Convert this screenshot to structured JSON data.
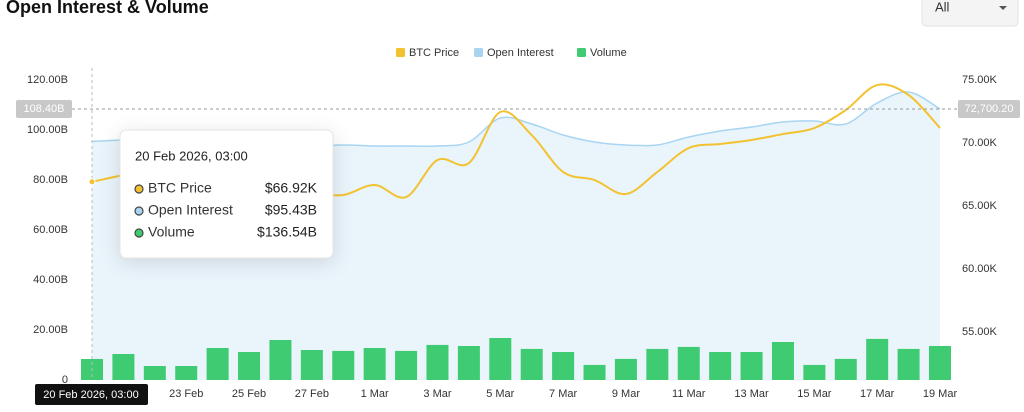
{
  "chart_data": {
    "type": "combo",
    "title": "Open Interest & Volume",
    "range_selector": "All",
    "categories": [
      "20 Feb 2026, 03:00",
      null,
      null,
      "23 Feb",
      null,
      "25 Feb",
      null,
      "27 Feb",
      null,
      "1 Mar",
      null,
      "3 Mar",
      null,
      "5 Mar",
      null,
      "7 Mar",
      null,
      "9 Mar",
      null,
      "11 Mar",
      null,
      "13 Mar",
      null,
      "15 Mar",
      null,
      "17 Mar",
      null,
      "19 Mar"
    ],
    "series": [
      {
        "name": "BTC Price",
        "type": "line",
        "axis": "y2",
        "color": "#f2c230",
        "values": [
          66920,
          67460,
          68000,
          67700,
          66700,
          66300,
          65900,
          66000,
          65870,
          66670,
          65710,
          68650,
          68410,
          72460,
          70630,
          67700,
          67060,
          65950,
          67700,
          69600,
          69920,
          70240,
          70710,
          71190,
          72620,
          74600,
          73810,
          71190
        ]
      },
      {
        "name": "Open Interest",
        "type": "area",
        "axis": "y",
        "color": "#a8d5f2",
        "fill": "#eaf4fb",
        "values": [
          95.43,
          96,
          96,
          95.6,
          94.8,
          94,
          93.6,
          93.6,
          94,
          93.6,
          93.6,
          93.6,
          95.2,
          104.8,
          102.4,
          98,
          95.2,
          94,
          94,
          97.2,
          99.6,
          101.2,
          103.2,
          103.6,
          102.4,
          110.8,
          115.2,
          108.4
        ]
      },
      {
        "name": "Volume",
        "type": "bar",
        "axis": "y3",
        "color": "#3ecb72",
        "values": [
          136.54,
          169,
          91,
          91,
          208,
          182,
          260,
          195,
          189,
          208,
          189,
          228,
          221,
          273,
          202,
          182,
          98,
          137,
          202,
          215,
          182,
          182,
          247,
          98,
          137,
          267,
          202,
          221
        ]
      }
    ],
    "ylim": [
      0,
      120
    ],
    "yticks": [
      {
        "value": 0,
        "label": "0"
      },
      {
        "value": 20,
        "label": "20.00B"
      },
      {
        "value": 40,
        "label": "40.00B"
      },
      {
        "value": 60,
        "label": "60.00B"
      },
      {
        "value": 80,
        "label": "80.00B"
      },
      {
        "value": 100,
        "label": "100.00B"
      },
      {
        "value": 120,
        "label": "120.00B"
      }
    ],
    "y2lim": [
      51190,
      75000
    ],
    "y2ticks": [
      {
        "value": 55000,
        "label": "55.00K"
      },
      {
        "value": 60000,
        "label": "60.00K"
      },
      {
        "value": 65000,
        "label": "65.00K"
      },
      {
        "value": 70000,
        "label": "70.00K"
      },
      {
        "value": 75000,
        "label": "75.00K"
      }
    ],
    "y3lim": [
      0,
      1950
    ],
    "crosshair": {
      "y": {
        "value": 108.4,
        "label": "108.40B"
      },
      "y2": {
        "value": 72700.2,
        "label": "72,700.20"
      }
    },
    "tooltip": {
      "labels": [
        "$66.92K",
        "$95.43B",
        "$136.54B"
      ]
    },
    "grid": false
  }
}
